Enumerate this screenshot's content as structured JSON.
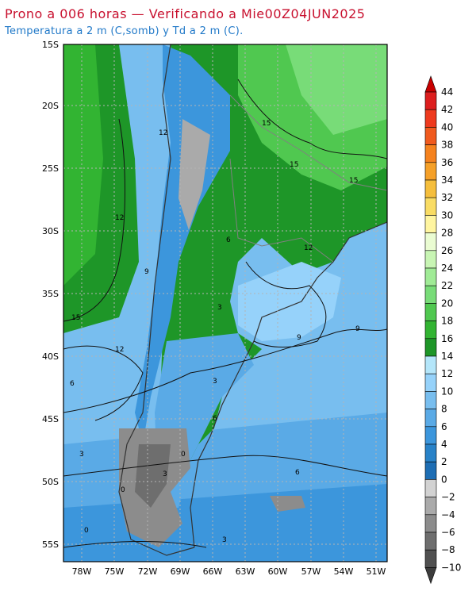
{
  "header": {
    "title": "Prono a 006 horas — Verificando a Mie00Z04JUN2025",
    "subtitle": "Temperatura a 2 m (C,somb) y Td a 2 m (C)."
  },
  "map": {
    "lat_labels": [
      "15S",
      "20S",
      "25S",
      "30S",
      "35S",
      "40S",
      "45S",
      "50S",
      "55S"
    ],
    "lon_labels": [
      "78W",
      "75W",
      "72W",
      "69W",
      "66W",
      "63W",
      "60W",
      "57W",
      "54W",
      "51W"
    ],
    "contour_labels": [
      "15",
      "12",
      "15",
      "15",
      "12",
      "6",
      "9",
      "3",
      "12",
      "15",
      "12",
      "9",
      "6",
      "3",
      "0",
      "0",
      "3",
      "6",
      "9",
      "6",
      "3",
      "0",
      "3"
    ],
    "grid": true
  },
  "colorbar": {
    "labels": [
      "44",
      "42",
      "40",
      "38",
      "36",
      "34",
      "32",
      "30",
      "28",
      "26",
      "24",
      "22",
      "20",
      "18",
      "16",
      "14",
      "12",
      "10",
      "8",
      "6",
      "4",
      "2",
      "0",
      "−2",
      "−4",
      "−6",
      "−8",
      "−10"
    ],
    "colors": [
      "#c80000",
      "#dd1e1e",
      "#ee3a1e",
      "#f05a1e",
      "#f5821e",
      "#f5a028",
      "#f5be3c",
      "#f9dc64",
      "#fff5a0",
      "#eafcd2",
      "#c8f5b4",
      "#a0eb96",
      "#78dc78",
      "#50c850",
      "#32b432",
      "#1e9628",
      "#b4e6fa",
      "#96d2fa",
      "#78beef",
      "#5aaae6",
      "#3c96dc",
      "#2882c8",
      "#1e6eb4",
      "#d2d2d2",
      "#aaaaaa",
      "#8c8c8c",
      "#6e6e6e",
      "#505050",
      "#3c3c3c"
    ]
  }
}
